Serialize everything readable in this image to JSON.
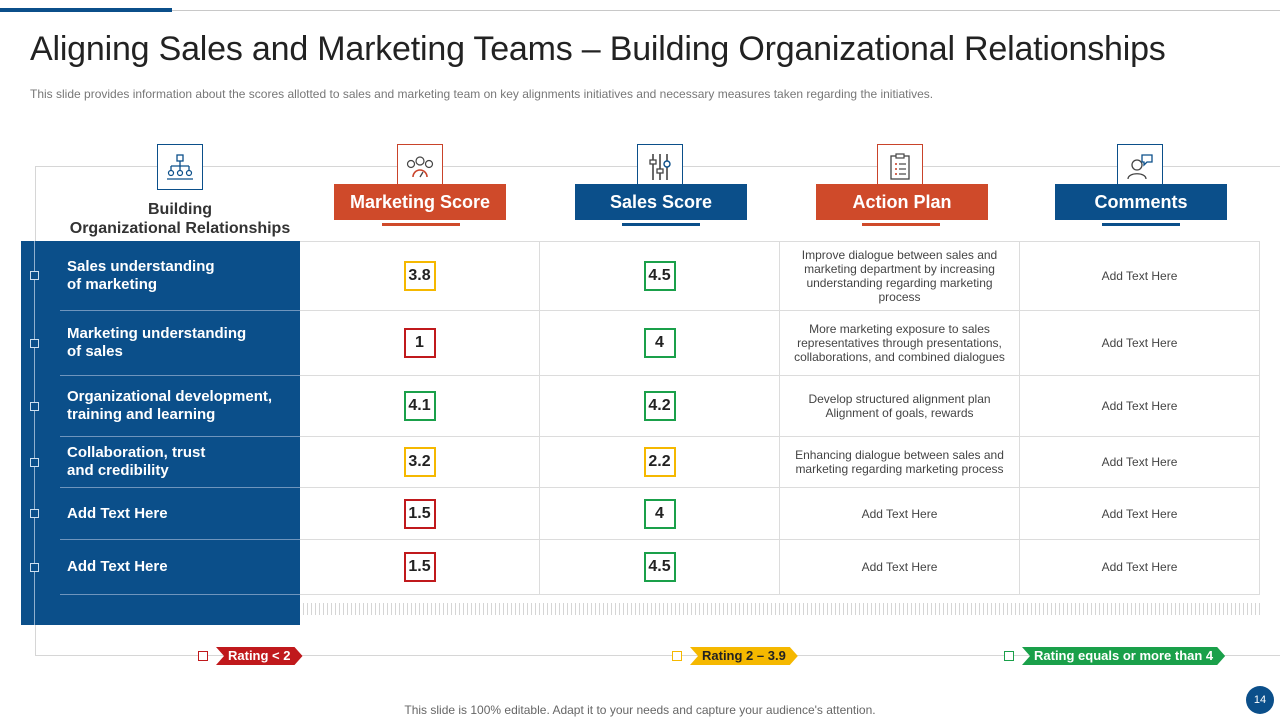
{
  "title": "Aligning Sales and Marketing Teams – Building Organizational Relationships",
  "subtitle": "This slide provides  information about the scores allotted to sales and marketing team on key alignments initiatives and necessary measures taken regarding the initiatives.",
  "first_column_header": "Building\nOrganizational Relationships",
  "columns": [
    {
      "label": "Marketing Score",
      "icon": "team-gauge-icon",
      "color": "#cf4a2a"
    },
    {
      "label": "Sales Score",
      "icon": "sliders-icon",
      "color": "#0b4f8a"
    },
    {
      "label": "Action Plan",
      "icon": "checklist-icon",
      "color": "#cf4a2a"
    },
    {
      "label": "Comments",
      "icon": "user-comment-icon",
      "color": "#0b4f8a"
    }
  ],
  "rows": [
    {
      "label": "Sales understanding\nof marketing",
      "marketing_score": "3.8",
      "sales_score": "4.5",
      "action_plan": "Improve dialogue between sales and marketing department by increasing understanding regarding marketing process",
      "comments": "Add Text Here"
    },
    {
      "label": "Marketing understanding\nof sales",
      "marketing_score": "1",
      "sales_score": "4",
      "action_plan": "More  marketing exposure to sales representatives through presentations, collaborations, and combined dialogues",
      "comments": "Add Text Here"
    },
    {
      "label": "Organizational development,\ntraining and learning",
      "marketing_score": "4.1",
      "sales_score": "4.2",
      "action_plan": "Develop structured alignment plan\nAlignment of goals, rewards",
      "comments": "Add Text Here"
    },
    {
      "label": "Collaboration, trust\nand credibility",
      "marketing_score": "3.2",
      "sales_score": "2.2",
      "action_plan": "Enhancing dialogue between sales and marketing regarding marketing process",
      "comments": "Add Text Here"
    },
    {
      "label": "Add  Text Here",
      "marketing_score": "1.5",
      "sales_score": "4",
      "action_plan": "Add Text Here",
      "comments": "Add Text Here"
    },
    {
      "label": "Add  Text Here",
      "marketing_score": "1.5",
      "sales_score": "4.5",
      "action_plan": "Add Text Here",
      "comments": "Add Text Here"
    }
  ],
  "legend": [
    {
      "label": "Rating < 2",
      "color": "#c0191c"
    },
    {
      "label": "Rating 2 – 3.9",
      "color": "#f5b800"
    },
    {
      "label": "Rating equals or more than 4",
      "color": "#1aa04a"
    }
  ],
  "footer": "This slide is 100% editable. Adapt it to your needs and capture your audience's attention.",
  "page_number": "14"
}
